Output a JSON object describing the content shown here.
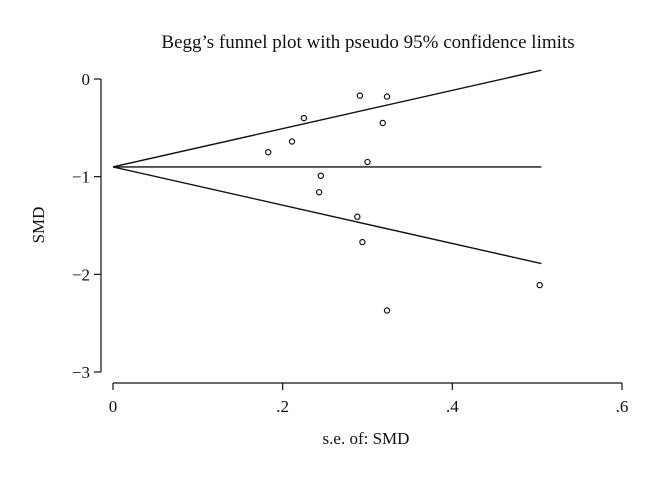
{
  "chart_data": {
    "type": "scatter",
    "title": "Begg’s funnel plot with pseudo 95% confidence limits",
    "xlabel": "s.e. of: SMD",
    "ylabel": "SMD",
    "xlim": [
      0,
      0.6
    ],
    "ylim": [
      -3,
      0
    ],
    "x_ticks": [
      0,
      0.2,
      0.4,
      0.6
    ],
    "x_tick_labels": [
      "0",
      ".2",
      ".4",
      ".6"
    ],
    "y_ticks": [
      0,
      -1,
      -2,
      -3
    ],
    "y_tick_labels": [
      "0",
      "−1",
      "−2",
      "−3"
    ],
    "grid": false,
    "pooled_estimate": -0.9,
    "line_x_max": 0.505,
    "pseudo_ci_multiplier": 1.96,
    "points": [
      {
        "x": 0.183,
        "y": -0.75
      },
      {
        "x": 0.211,
        "y": -0.64
      },
      {
        "x": 0.225,
        "y": -0.4
      },
      {
        "x": 0.243,
        "y": -1.16
      },
      {
        "x": 0.245,
        "y": -0.99
      },
      {
        "x": 0.288,
        "y": -1.41
      },
      {
        "x": 0.291,
        "y": -0.17
      },
      {
        "x": 0.294,
        "y": -1.67
      },
      {
        "x": 0.3,
        "y": -0.85
      },
      {
        "x": 0.318,
        "y": -0.45
      },
      {
        "x": 0.323,
        "y": -0.18
      },
      {
        "x": 0.323,
        "y": -2.37
      },
      {
        "x": 0.503,
        "y": -2.11
      }
    ]
  }
}
